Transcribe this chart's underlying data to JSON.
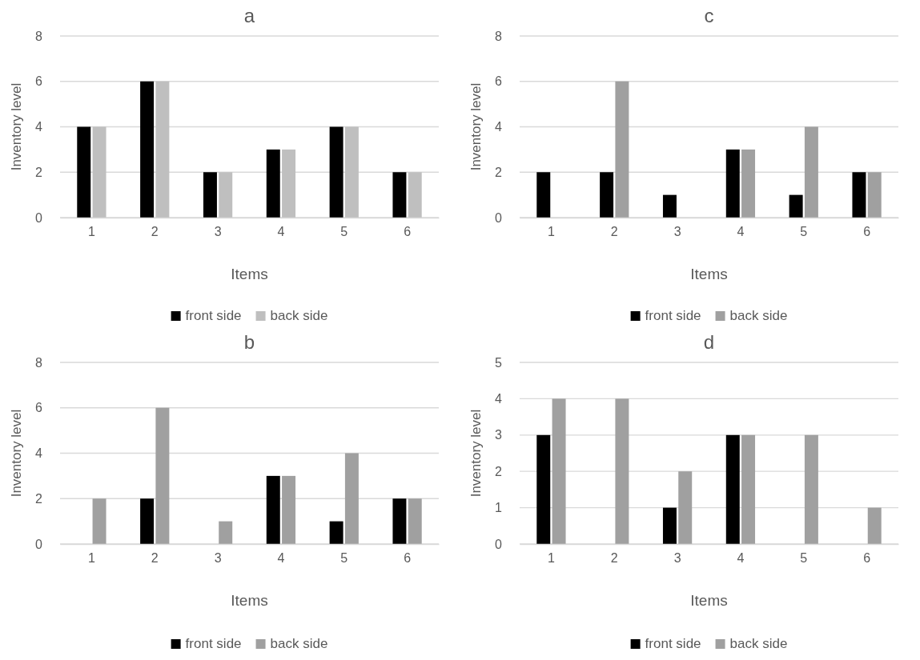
{
  "chart_data": [
    {
      "type": "bar",
      "title": "a",
      "xlabel": "Items",
      "ylabel": "Inventory level",
      "categories": [
        "1",
        "2",
        "3",
        "4",
        "5",
        "6"
      ],
      "ylim": [
        0,
        8
      ],
      "yticks": [
        0,
        2,
        4,
        6,
        8
      ],
      "grid": "y",
      "legend": "bottom",
      "series": [
        {
          "name": "front side",
          "color": "#000000",
          "values": [
            4,
            6,
            2,
            3,
            4,
            2
          ]
        },
        {
          "name": "back side",
          "color": "#bfbfbf",
          "values": [
            4,
            6,
            2,
            3,
            4,
            2
          ]
        }
      ]
    },
    {
      "type": "bar",
      "title": "c",
      "xlabel": "Items",
      "ylabel": "Inventory level",
      "categories": [
        "1",
        "2",
        "3",
        "4",
        "5",
        "6"
      ],
      "ylim": [
        0,
        8
      ],
      "yticks": [
        0,
        2,
        4,
        6,
        8
      ],
      "grid": "y",
      "legend": "bottom",
      "series": [
        {
          "name": "front side",
          "color": "#000000",
          "values": [
            2,
            2,
            1,
            3,
            1,
            2
          ]
        },
        {
          "name": "back side",
          "color": "#a0a0a0",
          "values": [
            0,
            6,
            0,
            3,
            4,
            2
          ]
        }
      ]
    },
    {
      "type": "bar",
      "title": "b",
      "xlabel": "Items",
      "ylabel": "Inventory level",
      "categories": [
        "1",
        "2",
        "3",
        "4",
        "5",
        "6"
      ],
      "ylim": [
        0,
        8
      ],
      "yticks": [
        0,
        2,
        4,
        6,
        8
      ],
      "grid": "y",
      "legend": "bottom",
      "series": [
        {
          "name": "front side",
          "color": "#000000",
          "values": [
            0,
            2,
            0,
            3,
            1,
            2
          ]
        },
        {
          "name": "back side",
          "color": "#a0a0a0",
          "values": [
            2,
            6,
            1,
            3,
            4,
            2
          ]
        }
      ]
    },
    {
      "type": "bar",
      "title": "d",
      "xlabel": "Items",
      "ylabel": "Inventory level",
      "categories": [
        "1",
        "2",
        "3",
        "4",
        "5",
        "6"
      ],
      "ylim": [
        0,
        5
      ],
      "yticks": [
        0,
        1,
        2,
        3,
        4,
        5
      ],
      "grid": "y",
      "legend": "bottom",
      "series": [
        {
          "name": "front side",
          "color": "#000000",
          "values": [
            3,
            0,
            1,
            3,
            0,
            0
          ]
        },
        {
          "name": "back side",
          "color": "#a0a0a0",
          "values": [
            4,
            4,
            2,
            3,
            3,
            1
          ]
        }
      ]
    }
  ]
}
